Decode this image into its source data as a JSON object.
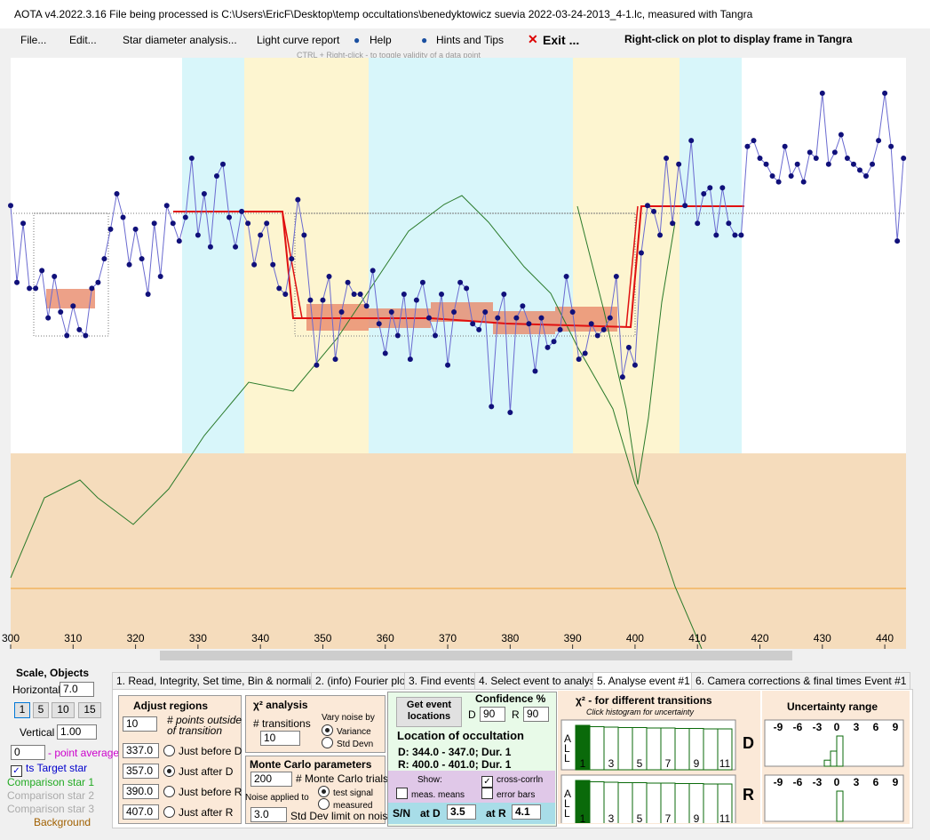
{
  "title_bar": "AOTA v4.2022.3.16    File being processed is C:\\Users\\EricF\\Desktop\\temp occultations\\benedyktowicz suevia 2022-03-24-2013_4-1.lc, measured with Tangra",
  "menu": [
    "File...",
    "Edit...",
    "Star diameter analysis...",
    "Light curve report",
    "Help",
    "Hints and Tips",
    "Exit ...",
    "Right-click on plot to display frame in Tangra"
  ],
  "hint": "CTRL + Right-click  -  to toggle validity of a data point",
  "plot": {
    "xlim": [
      300,
      443.4
    ],
    "ylim": [
      0,
      100
    ],
    "xticks": [
      300,
      310,
      320,
      330,
      340,
      350,
      360,
      370,
      380,
      390,
      400,
      410,
      420,
      430,
      440
    ],
    "frames": [
      300,
      301,
      302,
      303,
      304,
      305,
      306,
      307,
      308,
      309,
      310,
      311,
      312,
      313,
      314,
      315,
      316,
      317,
      318,
      319,
      320,
      321,
      322,
      323,
      324,
      325,
      326,
      327,
      328,
      329,
      330,
      331,
      332,
      333,
      334,
      335,
      336,
      337,
      338,
      339,
      340,
      341,
      342,
      343,
      344,
      345,
      346,
      347,
      348,
      349,
      350,
      351,
      352,
      353,
      354,
      355,
      356,
      357,
      358,
      359,
      360,
      361,
      362,
      363,
      364,
      365,
      366,
      367,
      368,
      369,
      370,
      371,
      372,
      373,
      374,
      375,
      376,
      377,
      378,
      379,
      380,
      381,
      382,
      383,
      384,
      385,
      386,
      387,
      388,
      389,
      390,
      391,
      392,
      393,
      394,
      395,
      396,
      397,
      398,
      399,
      400,
      401,
      402,
      403,
      404,
      405,
      406,
      407,
      408,
      409,
      410,
      411,
      412,
      413,
      414,
      415,
      416,
      417,
      418,
      419,
      420,
      421,
      422,
      423,
      424,
      425,
      426,
      427,
      428,
      429,
      430,
      431,
      432,
      433,
      434,
      435,
      436,
      437,
      438,
      439,
      440,
      441,
      442,
      443
    ],
    "values": [
      75,
      62,
      72,
      61,
      61,
      64,
      56,
      63,
      57,
      53,
      58,
      54,
      53,
      61,
      62,
      66,
      71,
      77,
      73,
      65,
      71,
      66,
      60,
      72,
      63,
      75,
      72,
      69,
      73,
      83,
      70,
      77,
      68,
      80,
      82,
      73,
      68,
      74,
      72,
      65,
      70,
      72,
      65,
      61,
      60,
      66,
      76,
      70,
      59,
      48,
      59,
      63,
      49,
      57,
      62,
      60,
      60,
      58,
      64,
      55,
      50,
      57,
      53,
      60,
      49,
      59,
      62,
      56,
      53,
      60,
      48,
      57,
      62,
      61,
      55,
      54,
      57,
      41,
      56,
      60,
      40,
      56,
      58,
      55,
      47,
      56,
      51,
      52,
      54,
      63,
      57,
      49,
      50,
      55,
      53,
      54,
      56,
      63,
      46,
      51,
      48,
      67,
      75,
      74,
      70,
      83,
      72,
      82,
      75,
      86,
      72,
      77,
      78,
      70,
      78,
      72,
      70,
      70,
      85,
      86,
      83,
      82,
      80,
      79,
      85,
      80,
      82,
      79,
      84,
      83,
      94,
      82,
      84,
      87,
      83,
      82,
      81,
      80,
      82,
      86,
      94,
      85,
      69,
      83
    ]
  },
  "tabs": [
    "1. Read, Integrity, Set time, Bin & normalise",
    "2. (info)  Fourier plot",
    "3. Find events",
    "4. Select event to analyse",
    "5. Analyse event #1",
    "6. Camera corrections & final times Event #1"
  ],
  "scale": {
    "title": "Scale,  Objects",
    "horizontal_label": "Horizontal",
    "horizontal": "7.0",
    "buttons": [
      "1",
      "5",
      "10",
      "15"
    ],
    "vertical_label": "Vertical",
    "vertical": "1.00",
    "average": "0",
    "average_label": "- point average"
  },
  "objects": [
    "ts  Target star",
    "Comparison star 1",
    "Comparison star 2",
    "Comparison star 3",
    "Background"
  ],
  "adjust": {
    "title": "Adjust regions",
    "points": "10",
    "points_label": "# points outside of transition",
    "rows": [
      [
        "337.0",
        "Just before D"
      ],
      [
        "357.0",
        "Just after D"
      ],
      [
        "390.0",
        "Just before R"
      ],
      [
        "407.0",
        "Just after R"
      ]
    ]
  },
  "chi2": {
    "title": "χ² analysis",
    "transitions_label": "# transitions",
    "transitions": "10",
    "vary_label": "Vary noise by",
    "options": [
      "Variance",
      "Std Devn"
    ]
  },
  "monte_carlo": {
    "title": "Monte Carlo parameters",
    "trials": "200",
    "trials_label": "# Monte Carlo trials",
    "noise_label": "Noise applied to",
    "options": [
      "test signal",
      "measured"
    ],
    "sd": "3.0",
    "sd_label": "Std Dev limit on noise"
  },
  "event": {
    "button": "Get event locations",
    "confidence_label": "Confidence %",
    "d_label": "D",
    "d": "90",
    "r_label": "R",
    "r": "90",
    "location_title": "Location of occultation",
    "d_line": "D: 344.0 - 347.0;  Dur. 1",
    "r_line": "R: 400.0 - 401.0;  Dur. 1",
    "show": "Show:",
    "meas": "meas. means",
    "cross": "cross-corrln",
    "error": "error bars",
    "sn": "S/N",
    "at_d": "at D",
    "sn_d": "3.5",
    "at_r": "at R",
    "sn_r": "4.1"
  },
  "hist": {
    "title": "χ² - for different transitions",
    "subtitle": "Click histogram for uncertainty",
    "side": [
      "A",
      "L",
      "L"
    ],
    "labels": [
      "1",
      "3",
      "5",
      "7",
      "9",
      "11"
    ],
    "d": [
      100,
      97,
      96,
      95,
      95,
      94,
      94,
      93,
      93,
      92,
      92
    ],
    "r": [
      100,
      97,
      96,
      95,
      95,
      94,
      94,
      93,
      93,
      92,
      92
    ]
  },
  "uncertainty": {
    "title": "Uncertainty range",
    "ticks": [
      "-9",
      "-6",
      "-3",
      "0",
      "3",
      "6",
      "9"
    ],
    "d_label": "D",
    "r_label": "R",
    "d": [
      20,
      50,
      100
    ],
    "r": [
      100
    ]
  }
}
